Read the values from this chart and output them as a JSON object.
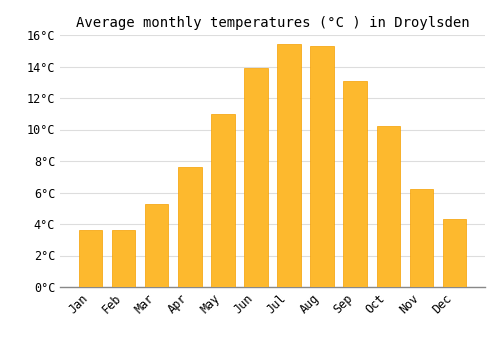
{
  "title": "Average monthly temperatures (°C ) in Droylsden",
  "months": [
    "Jan",
    "Feb",
    "Mar",
    "Apr",
    "May",
    "Jun",
    "Jul",
    "Aug",
    "Sep",
    "Oct",
    "Nov",
    "Dec"
  ],
  "values": [
    3.6,
    3.6,
    5.3,
    7.6,
    11.0,
    13.9,
    15.4,
    15.3,
    13.1,
    10.2,
    6.2,
    4.3
  ],
  "bar_color_top": "#FDB92E",
  "bar_color_bottom": "#F5A000",
  "background_color": "#FFFFFF",
  "grid_color": "#DDDDDD",
  "ylim": [
    0,
    16
  ],
  "yticks": [
    0,
    2,
    4,
    6,
    8,
    10,
    12,
    14,
    16
  ],
  "title_fontsize": 10,
  "tick_fontsize": 8.5,
  "font_family": "monospace",
  "bar_width": 0.7
}
